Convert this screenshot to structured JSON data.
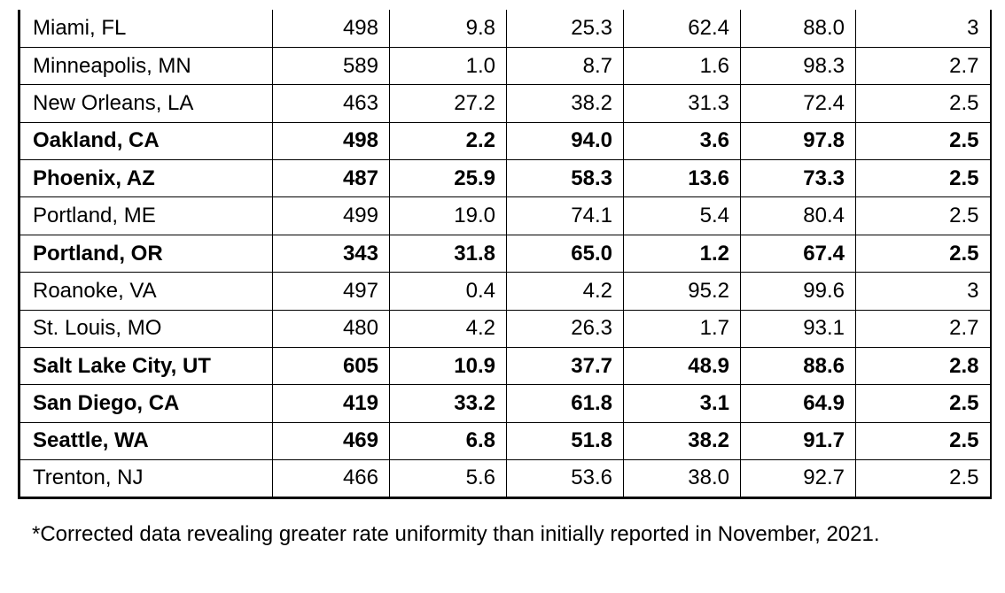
{
  "table": {
    "rows": [
      {
        "cells": [
          "Miami, FL",
          "498",
          "9.8",
          "25.3",
          "62.4",
          "88.0",
          "3"
        ],
        "bold": false
      },
      {
        "cells": [
          "Minneapolis, MN",
          "589",
          "1.0",
          "8.7",
          "1.6",
          "98.3",
          "2.7"
        ],
        "bold": false
      },
      {
        "cells": [
          "New Orleans, LA",
          "463",
          "27.2",
          "38.2",
          "31.3",
          "72.4",
          "2.5"
        ],
        "bold": false
      },
      {
        "cells": [
          "Oakland, CA",
          "498",
          "2.2",
          "94.0",
          "3.6",
          "97.8",
          "2.5"
        ],
        "bold": true
      },
      {
        "cells": [
          "Phoenix, AZ",
          "487",
          "25.9",
          "58.3",
          "13.6",
          "73.3",
          "2.5"
        ],
        "bold": true
      },
      {
        "cells": [
          "Portland, ME",
          "499",
          "19.0",
          "74.1",
          "5.4",
          "80.4",
          "2.5"
        ],
        "bold": false
      },
      {
        "cells": [
          "Portland, OR",
          "343",
          "31.8",
          "65.0",
          "1.2",
          "67.4",
          "2.5"
        ],
        "bold": true
      },
      {
        "cells": [
          "Roanoke, VA",
          "497",
          "0.4",
          "4.2",
          "95.2",
          "99.6",
          "3"
        ],
        "bold": false
      },
      {
        "cells": [
          "St. Louis, MO",
          "480",
          "4.2",
          "26.3",
          "1.7",
          "93.1",
          "2.7"
        ],
        "bold": false
      },
      {
        "cells": [
          "Salt Lake City, UT",
          "605",
          "10.9",
          "37.7",
          "48.9",
          "88.6",
          "2.8"
        ],
        "bold": true
      },
      {
        "cells": [
          "San Diego, CA",
          "419",
          "33.2",
          "61.8",
          "3.1",
          "64.9",
          "2.5"
        ],
        "bold": true
      },
      {
        "cells": [
          "Seattle, WA",
          "469",
          "6.8",
          "51.8",
          "38.2",
          "91.7",
          "2.5"
        ],
        "bold": true
      },
      {
        "cells": [
          "Trenton, NJ",
          "466",
          "5.6",
          "53.6",
          "38.0",
          "92.7",
          "2.5"
        ],
        "bold": false
      }
    ]
  },
  "footnote": "*Corrected data revealing greater rate uniformity than initially reported in November, 2021."
}
